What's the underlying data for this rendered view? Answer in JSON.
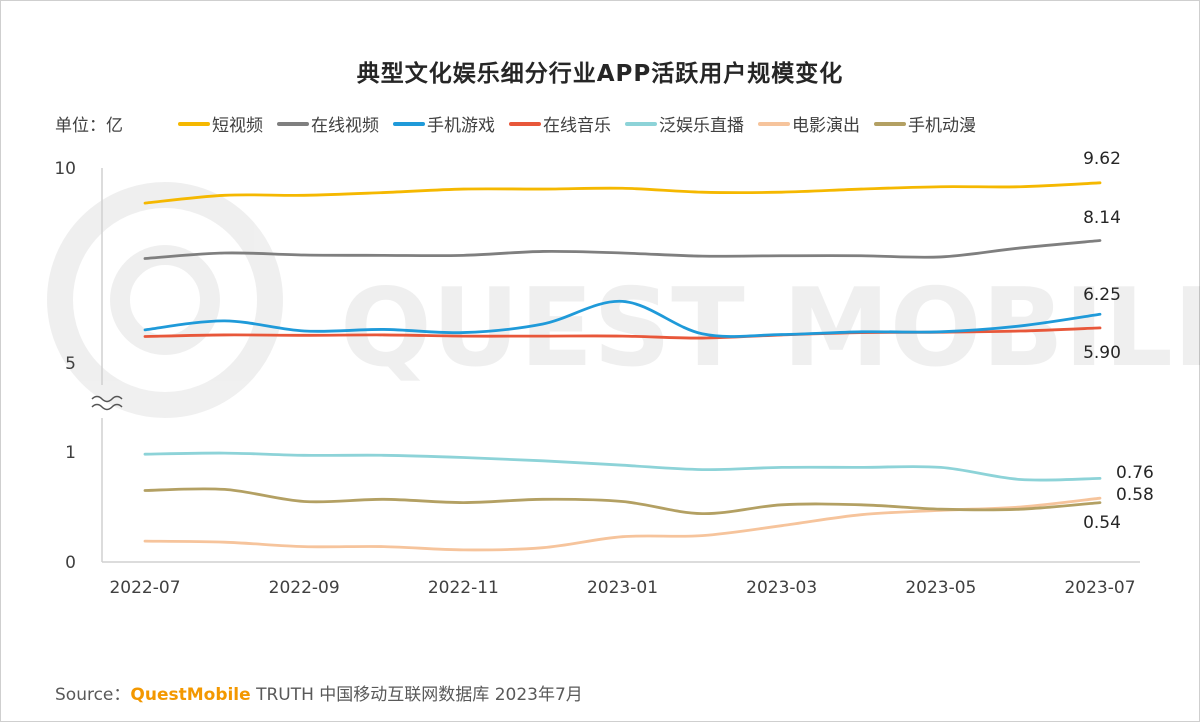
{
  "title": "典型文化娱乐细分行业APP活跃用户规模变化",
  "unit": "单位：亿",
  "watermark": "QUEST MOBILE",
  "footer": {
    "prefix": "Source：",
    "brand": "QuestMobile",
    "rest": " TRUTH 中国移动互联网数据库 2023年7月"
  },
  "chart_data": {
    "type": "line",
    "title": "典型文化娱乐细分行业APP活跃用户规模变化",
    "ylabel": "单位：亿",
    "xlabel": "",
    "categories": [
      "2022-07",
      "2022-08",
      "2022-09",
      "2022-10",
      "2022-11",
      "2022-12",
      "2023-01",
      "2023-02",
      "2023-03",
      "2023-04",
      "2023-05",
      "2023-06",
      "2023-07"
    ],
    "x_tick_labels": [
      "2022-07",
      "2022-09",
      "2022-11",
      "2023-01",
      "2023-03",
      "2023-05",
      "2023-07"
    ],
    "y_axis_broken": true,
    "upper_segment": {
      "ylim": [
        5,
        10
      ],
      "tick_labels": [
        "10",
        "5"
      ]
    },
    "lower_segment": {
      "ylim": [
        0,
        1
      ],
      "tick_labels": [
        "1",
        "0"
      ]
    },
    "legend_position": "top",
    "grid": false,
    "series": [
      {
        "name": "短视频",
        "color": "#f5b800",
        "segment": "upper",
        "values": [
          9.1,
          9.3,
          9.3,
          9.37,
          9.46,
          9.46,
          9.48,
          9.38,
          9.38,
          9.46,
          9.52,
          9.52,
          9.62
        ],
        "end_label": "9.62"
      },
      {
        "name": "在线视频",
        "color": "#7f7f7f",
        "segment": "upper",
        "values": [
          7.68,
          7.82,
          7.77,
          7.76,
          7.76,
          7.86,
          7.82,
          7.74,
          7.75,
          7.75,
          7.72,
          7.95,
          8.14
        ],
        "end_label": "8.14"
      },
      {
        "name": "手机游戏",
        "color": "#1f9ad9",
        "segment": "upper",
        "values": [
          5.85,
          6.08,
          5.82,
          5.86,
          5.78,
          6.0,
          6.58,
          5.75,
          5.73,
          5.8,
          5.8,
          5.95,
          6.25
        ],
        "end_label": "6.25"
      },
      {
        "name": "在线音乐",
        "color": "#e8573a",
        "segment": "upper",
        "values": [
          5.68,
          5.72,
          5.71,
          5.72,
          5.69,
          5.69,
          5.69,
          5.64,
          5.72,
          5.78,
          5.79,
          5.82,
          5.9
        ],
        "end_label": "5.90"
      },
      {
        "name": "泛娱乐直播",
        "color": "#8dd3d8",
        "segment": "lower",
        "values": [
          0.98,
          0.99,
          0.97,
          0.97,
          0.95,
          0.92,
          0.88,
          0.84,
          0.86,
          0.86,
          0.86,
          0.75,
          0.76
        ],
        "end_label": "0.76"
      },
      {
        "name": "电影演出",
        "color": "#f6c49c",
        "segment": "lower",
        "values": [
          0.19,
          0.18,
          0.14,
          0.14,
          0.11,
          0.13,
          0.23,
          0.24,
          0.33,
          0.43,
          0.47,
          0.5,
          0.58
        ],
        "end_label": "0.58"
      },
      {
        "name": "手机动漫",
        "color": "#b3a063",
        "segment": "lower",
        "values": [
          0.65,
          0.66,
          0.55,
          0.57,
          0.54,
          0.57,
          0.55,
          0.44,
          0.52,
          0.52,
          0.48,
          0.48,
          0.54
        ],
        "end_label": "0.54"
      }
    ]
  }
}
